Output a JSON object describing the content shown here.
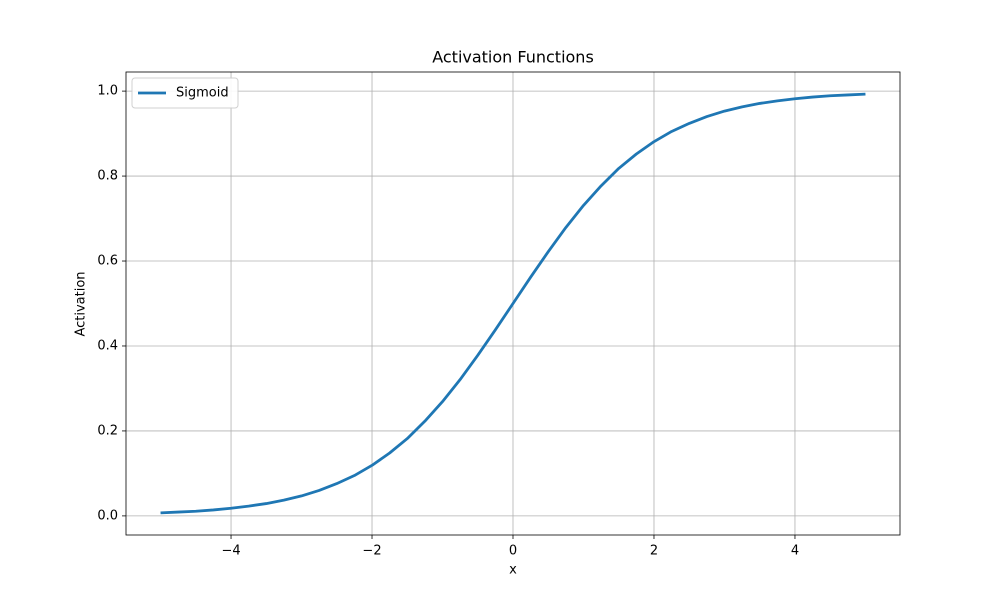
{
  "chart_data": {
    "type": "line",
    "title": "Activation Functions",
    "xlabel": "x",
    "ylabel": "Activation",
    "x": [
      -5,
      -4.75,
      -4.5,
      -4.25,
      -4,
      -3.75,
      -3.5,
      -3.25,
      -3,
      -2.75,
      -2.5,
      -2.25,
      -2,
      -1.75,
      -1.5,
      -1.25,
      -1,
      -0.75,
      -0.5,
      -0.25,
      0,
      0.25,
      0.5,
      0.75,
      1,
      1.25,
      1.5,
      1.75,
      2,
      2.25,
      2.5,
      2.75,
      3,
      3.25,
      3.5,
      3.75,
      4,
      4.25,
      4.5,
      4.75,
      5
    ],
    "series": [
      {
        "name": "Sigmoid",
        "color": "#1f77b4",
        "values": [
          0.007,
          0.009,
          0.011,
          0.014,
          0.018,
          0.023,
          0.029,
          0.037,
          0.047,
          0.06,
          0.076,
          0.095,
          0.119,
          0.148,
          0.182,
          0.223,
          0.269,
          0.321,
          0.378,
          0.438,
          0.5,
          0.562,
          0.622,
          0.679,
          0.731,
          0.777,
          0.818,
          0.852,
          0.881,
          0.905,
          0.924,
          0.94,
          0.953,
          0.963,
          0.971,
          0.977,
          0.982,
          0.986,
          0.989,
          0.991,
          0.993
        ]
      }
    ],
    "xlim": [
      -5.49,
      5.49
    ],
    "ylim": [
      -0.045,
      1.045
    ],
    "xticks": [
      {
        "value": -4,
        "label": "−4"
      },
      {
        "value": -2,
        "label": "−2"
      },
      0,
      2,
      4
    ],
    "yticks": [
      {
        "value": 0,
        "label": "0.0"
      },
      0.2,
      0.4,
      0.6,
      0.8,
      {
        "value": 1,
        "label": "1.0"
      }
    ],
    "grid": true,
    "legend": "upper left"
  }
}
